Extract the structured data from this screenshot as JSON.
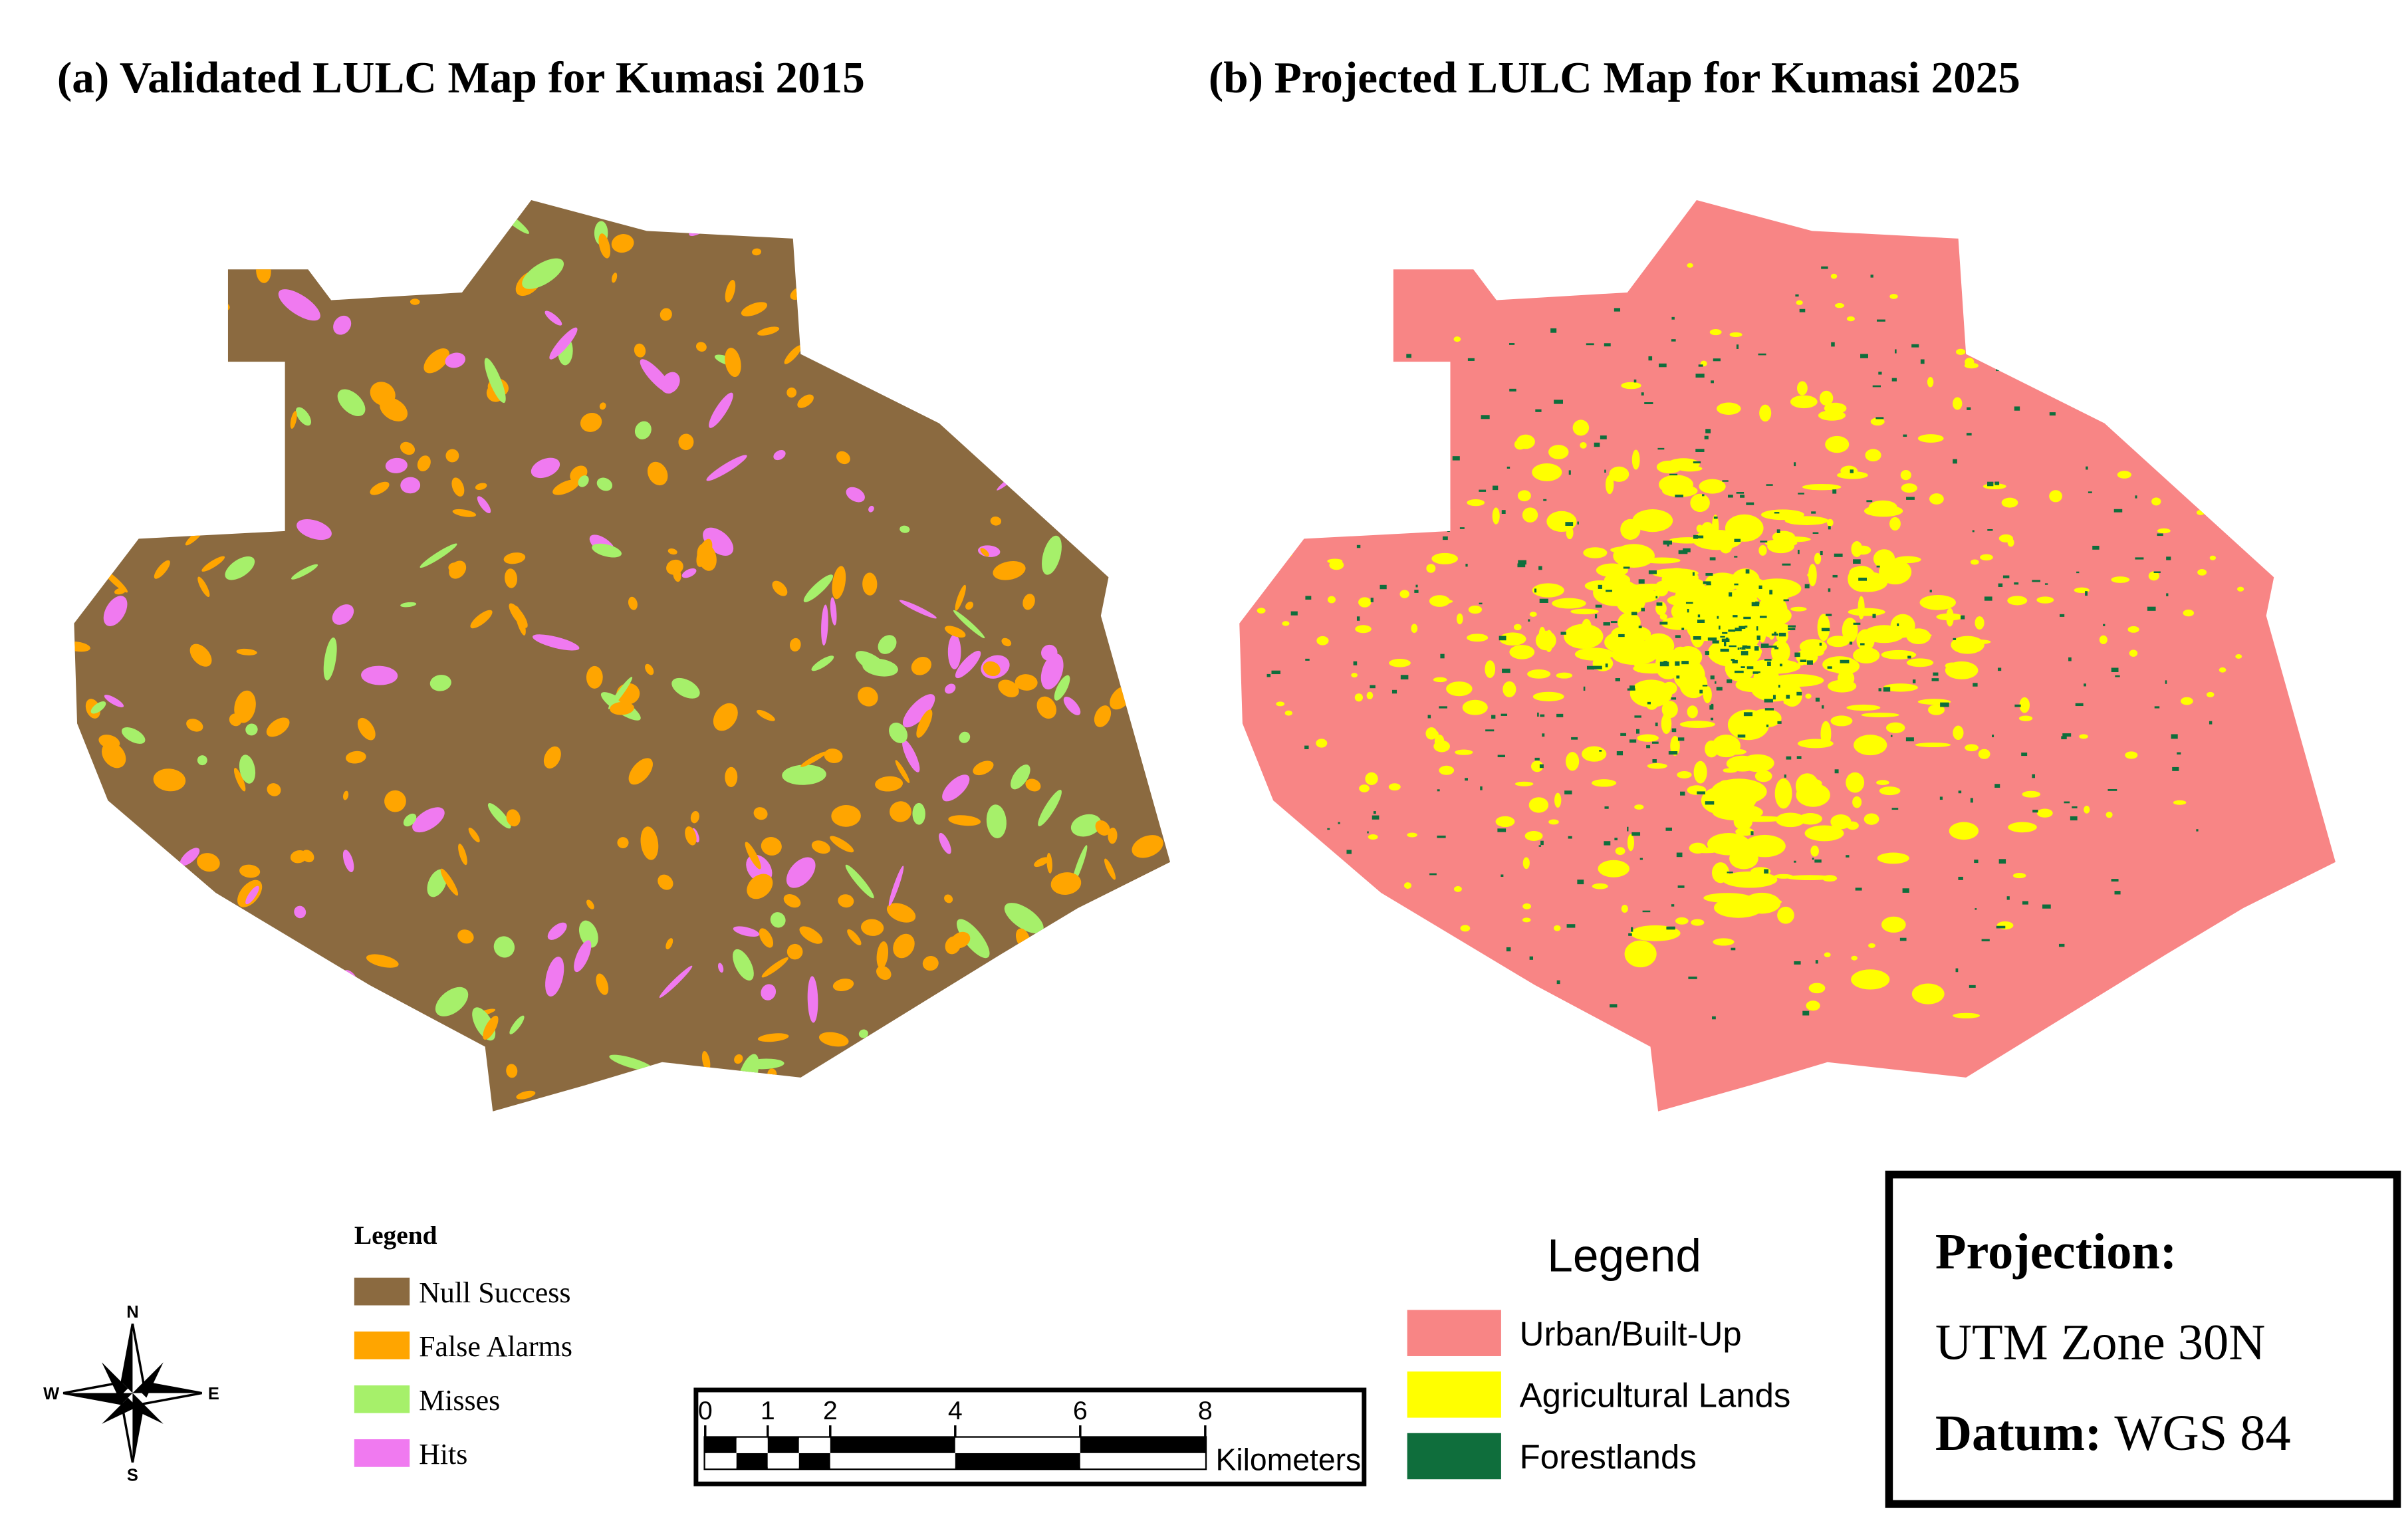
{
  "panels": [
    {
      "title": "(a) Validated LULC Map for Kumasi 2015",
      "legend": {
        "title": "Legend",
        "items": [
          {
            "label": "Null Success",
            "color": "#8b6a40"
          },
          {
            "label": "False Alarms",
            "color": "#ffa500"
          },
          {
            "label": "Misses",
            "color": "#a6f06a"
          },
          {
            "label": "Hits",
            "color": "#f07af0"
          }
        ]
      }
    },
    {
      "title": "(b) Projected LULC Map for Kumasi 2025",
      "legend": {
        "title": "Legend",
        "items": [
          {
            "label": "Urban/Built-Up",
            "color": "#f88585"
          },
          {
            "label": "Agricultural Lands",
            "color": "#ffff00"
          },
          {
            "label": "Forestlands",
            "color": "#0f6e3c"
          }
        ]
      }
    }
  ],
  "compass": {
    "n": "N",
    "s": "S",
    "e": "E",
    "w": "W"
  },
  "scale_bar": {
    "ticks": [
      0,
      1,
      2,
      4,
      6,
      8
    ],
    "unit": "Kilometers"
  },
  "projection": {
    "projection_label": "Projection:",
    "projection_value": "UTM Zone 30N",
    "datum_label": "Datum:",
    "datum_value": "WGS 84"
  }
}
